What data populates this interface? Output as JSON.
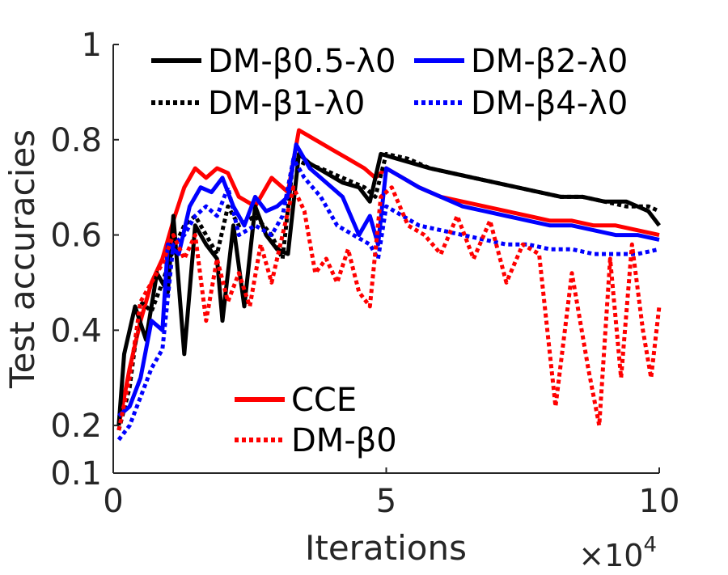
{
  "chart_data": {
    "type": "line",
    "xlabel": "Iterations",
    "ylabel": "Test accuracies",
    "x_multiplier_label": "×10",
    "x_multiplier_exp": "4",
    "xlim": [
      0,
      10
    ],
    "ylim": [
      0.1,
      1
    ],
    "xticks": [
      {
        "v": 0,
        "label": "0"
      },
      {
        "v": 5,
        "label": "5"
      },
      {
        "v": 10,
        "label": "10"
      }
    ],
    "yticks": [
      {
        "v": 0.1,
        "label": "0.1"
      },
      {
        "v": 0.2,
        "label": "0.2"
      },
      {
        "v": 0.4,
        "label": "0.4"
      },
      {
        "v": 0.6,
        "label": "0.6"
      },
      {
        "v": 0.8,
        "label": "0.8"
      },
      {
        "v": 1,
        "label": "1"
      }
    ],
    "grid": false,
    "legends": [
      {
        "position": "top",
        "entries": [
          {
            "series": 1,
            "label": "DM-β0.5-λ0"
          },
          {
            "series": 3,
            "label": "DM-β2-λ0"
          },
          {
            "series": 2,
            "label": "DM-β1-λ0"
          },
          {
            "series": 4,
            "label": "DM-β4-λ0"
          }
        ]
      },
      {
        "position": "bottom-left",
        "entries": [
          {
            "series": 0,
            "label": "CCE"
          },
          {
            "series": 5,
            "label": "DM-β0"
          }
        ]
      }
    ],
    "series": [
      {
        "name": "CCE",
        "color": "#ff0000",
        "style": "solid",
        "x": [
          0.1,
          0.3,
          0.5,
          0.7,
          0.9,
          1.1,
          1.3,
          1.5,
          1.7,
          1.9,
          2.1,
          2.3,
          2.6,
          2.9,
          3.2,
          3.4,
          3.7,
          4.0,
          4.3,
          4.6,
          4.8,
          5.0,
          5.3,
          5.6,
          6.0,
          6.4,
          6.8,
          7.2,
          7.6,
          8.0,
          8.4,
          8.8,
          9.2,
          9.6,
          10.0
        ],
        "values": [
          0.2,
          0.32,
          0.42,
          0.5,
          0.55,
          0.63,
          0.7,
          0.74,
          0.72,
          0.74,
          0.73,
          0.68,
          0.66,
          0.72,
          0.69,
          0.82,
          0.8,
          0.78,
          0.76,
          0.74,
          0.72,
          0.74,
          0.72,
          0.7,
          0.68,
          0.67,
          0.66,
          0.65,
          0.64,
          0.63,
          0.63,
          0.62,
          0.62,
          0.61,
          0.6
        ]
      },
      {
        "name": "DM-β0.5-λ0",
        "color": "#000000",
        "style": "solid",
        "x": [
          0.1,
          0.2,
          0.4,
          0.6,
          0.8,
          1.0,
          1.1,
          1.3,
          1.5,
          1.7,
          1.9,
          2.0,
          2.2,
          2.4,
          2.6,
          2.8,
          3.0,
          3.2,
          3.4,
          3.6,
          3.9,
          4.2,
          4.5,
          4.7,
          4.9,
          5.2,
          5.5,
          5.8,
          6.2,
          6.6,
          7.0,
          7.4,
          7.8,
          8.2,
          8.6,
          9.0,
          9.4,
          9.8,
          10.0
        ],
        "values": [
          0.2,
          0.35,
          0.45,
          0.38,
          0.52,
          0.48,
          0.64,
          0.35,
          0.62,
          0.58,
          0.55,
          0.42,
          0.62,
          0.45,
          0.66,
          0.6,
          0.57,
          0.56,
          0.77,
          0.75,
          0.73,
          0.71,
          0.7,
          0.67,
          0.77,
          0.76,
          0.75,
          0.74,
          0.73,
          0.72,
          0.71,
          0.7,
          0.69,
          0.68,
          0.68,
          0.67,
          0.67,
          0.65,
          0.62
        ]
      },
      {
        "name": "DM-β1-λ0",
        "color": "#000000",
        "style": "dotted",
        "x": [
          0.1,
          0.3,
          0.5,
          0.7,
          0.9,
          1.1,
          1.3,
          1.5,
          1.7,
          1.9,
          2.1,
          2.3,
          2.6,
          2.9,
          3.1,
          3.3,
          3.5,
          3.8,
          4.2,
          4.6,
          4.8,
          5.0,
          5.4,
          5.8,
          6.2,
          6.6,
          7.0,
          7.4,
          7.8,
          8.2,
          8.6,
          9.0,
          9.4,
          9.8,
          10.0
        ],
        "values": [
          0.19,
          0.28,
          0.46,
          0.44,
          0.5,
          0.57,
          0.62,
          0.64,
          0.6,
          0.56,
          0.66,
          0.62,
          0.64,
          0.6,
          0.55,
          0.76,
          0.75,
          0.74,
          0.72,
          0.7,
          0.68,
          0.77,
          0.76,
          0.74,
          0.73,
          0.72,
          0.71,
          0.7,
          0.69,
          0.68,
          0.68,
          0.67,
          0.66,
          0.66,
          0.65
        ]
      },
      {
        "name": "DM-β2-λ0",
        "color": "#0000ff",
        "style": "solid",
        "x": [
          0.1,
          0.3,
          0.5,
          0.7,
          0.9,
          1.0,
          1.2,
          1.4,
          1.6,
          1.8,
          2.0,
          2.2,
          2.4,
          2.6,
          2.8,
          3.0,
          3.2,
          3.35,
          3.6,
          3.9,
          4.2,
          4.5,
          4.7,
          4.85,
          5.0,
          5.3,
          5.6,
          6.0,
          6.4,
          6.8,
          7.2,
          7.6,
          8.0,
          8.4,
          8.8,
          9.2,
          9.6,
          10.0
        ],
        "values": [
          0.22,
          0.24,
          0.3,
          0.42,
          0.4,
          0.58,
          0.56,
          0.66,
          0.7,
          0.69,
          0.72,
          0.66,
          0.62,
          0.68,
          0.65,
          0.66,
          0.68,
          0.79,
          0.74,
          0.71,
          0.68,
          0.6,
          0.64,
          0.58,
          0.74,
          0.72,
          0.7,
          0.68,
          0.66,
          0.65,
          0.64,
          0.63,
          0.62,
          0.62,
          0.61,
          0.6,
          0.6,
          0.59
        ]
      },
      {
        "name": "DM-β4-λ0",
        "color": "#0000ff",
        "style": "dotted",
        "x": [
          0.1,
          0.3,
          0.5,
          0.7,
          0.9,
          1.1,
          1.3,
          1.5,
          1.7,
          1.9,
          2.1,
          2.3,
          2.6,
          2.9,
          3.1,
          3.3,
          3.5,
          3.8,
          4.1,
          4.4,
          4.7,
          4.85,
          5.0,
          5.3,
          5.6,
          6.0,
          6.4,
          6.8,
          7.2,
          7.6,
          8.0,
          8.4,
          8.8,
          9.2,
          9.6,
          10.0
        ],
        "values": [
          0.17,
          0.2,
          0.26,
          0.32,
          0.36,
          0.58,
          0.6,
          0.64,
          0.66,
          0.64,
          0.7,
          0.6,
          0.62,
          0.6,
          0.64,
          0.76,
          0.72,
          0.68,
          0.62,
          0.6,
          0.58,
          0.55,
          0.66,
          0.64,
          0.62,
          0.61,
          0.6,
          0.59,
          0.58,
          0.58,
          0.57,
          0.57,
          0.56,
          0.56,
          0.56,
          0.57
        ]
      },
      {
        "name": "DM-β0",
        "color": "#ff0000",
        "style": "dotted",
        "x": [
          0.1,
          0.3,
          0.5,
          0.7,
          0.9,
          1.1,
          1.3,
          1.5,
          1.7,
          1.9,
          2.1,
          2.3,
          2.5,
          2.7,
          2.9,
          3.1,
          3.3,
          3.5,
          3.7,
          3.9,
          4.1,
          4.3,
          4.5,
          4.7,
          4.9,
          5.1,
          5.4,
          5.7,
          6.0,
          6.3,
          6.6,
          6.9,
          7.2,
          7.5,
          7.8,
          8.1,
          8.4,
          8.7,
          8.9,
          9.1,
          9.3,
          9.5,
          9.7,
          9.85,
          10.0
        ],
        "values": [
          0.19,
          0.3,
          0.46,
          0.5,
          0.54,
          0.6,
          0.55,
          0.6,
          0.42,
          0.55,
          0.46,
          0.52,
          0.45,
          0.58,
          0.5,
          0.6,
          0.7,
          0.65,
          0.52,
          0.55,
          0.5,
          0.57,
          0.48,
          0.45,
          0.68,
          0.7,
          0.62,
          0.6,
          0.56,
          0.64,
          0.55,
          0.63,
          0.5,
          0.58,
          0.56,
          0.24,
          0.52,
          0.32,
          0.2,
          0.55,
          0.3,
          0.58,
          0.4,
          0.3,
          0.45
        ]
      }
    ]
  }
}
